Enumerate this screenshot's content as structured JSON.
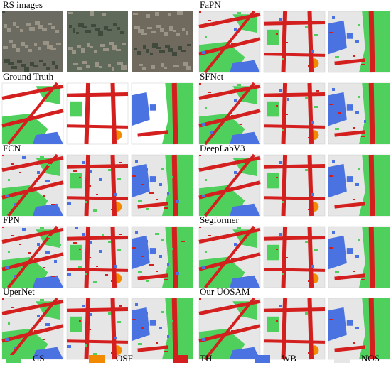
{
  "panels": [
    {
      "label": "RS images"
    },
    {
      "label": "FaPN"
    },
    {
      "label": "Ground Truth"
    },
    {
      "label": "SFNet"
    },
    {
      "label": "FCN"
    },
    {
      "label": "DeepLabV3"
    },
    {
      "label": "FPN"
    },
    {
      "label": "Segformer"
    },
    {
      "label": "UperNet"
    },
    {
      "label": "Our UOSAM"
    }
  ],
  "legend": [
    {
      "label": "GS",
      "color": "#4fcf5c"
    },
    {
      "label": "OSF",
      "color": "#f28a00"
    },
    {
      "label": "TH",
      "color": "#d41f1f"
    },
    {
      "label": "WB",
      "color": "#4a72e0"
    },
    {
      "label": "NOS",
      "color": "#e6e6e6"
    }
  ]
}
